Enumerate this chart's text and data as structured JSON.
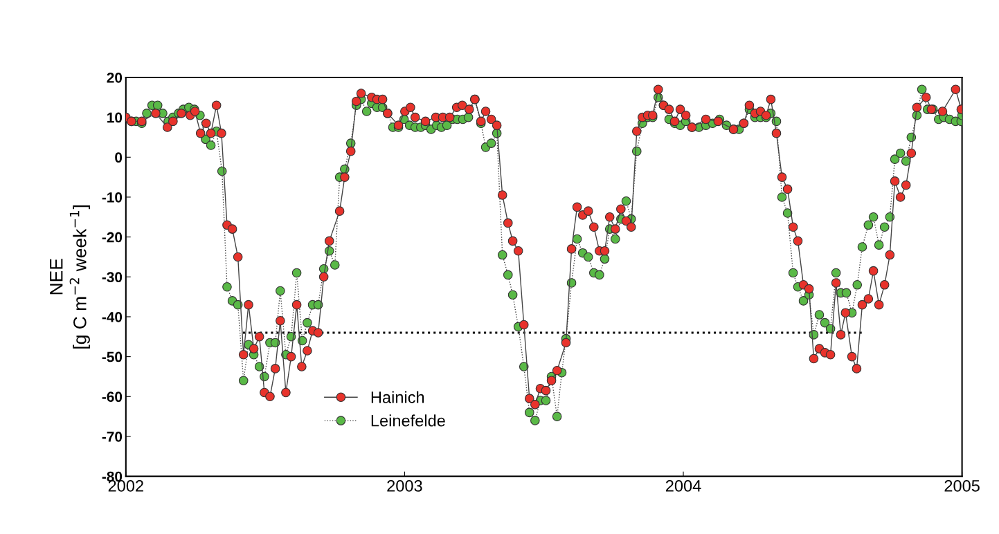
{
  "chart_data": {
    "type": "line",
    "xlabel": null,
    "ylabel": "NEE\n[g C m$^{−2}$ week$^{−1}$]",
    "xlim": [
      2002,
      2005
    ],
    "xticks": [
      2002,
      2003,
      2004,
      2005
    ],
    "ylim": [
      -80,
      20
    ],
    "yticks": [
      -80,
      -70,
      -60,
      -50,
      -40,
      -30,
      -20,
      -10,
      0,
      10,
      20
    ],
    "grid": false,
    "legend": "bottom left",
    "marker": "circle",
    "series": [
      {
        "name": "Hainich",
        "color": "#e8332c",
        "line_style": "solid",
        "x": [
          2002.0,
          2002.02,
          2002.057,
          2002.107,
          2002.149,
          2002.169,
          2002.199,
          2002.231,
          2002.248,
          2002.268,
          2002.288,
          2002.305,
          2002.325,
          2002.343,
          2002.363,
          2002.382,
          2002.402,
          2002.422,
          2002.44,
          2002.459,
          2002.479,
          2002.497,
          2002.517,
          2002.536,
          2002.554,
          2002.574,
          2002.593,
          2002.613,
          2002.631,
          2002.651,
          2002.67,
          2002.69,
          2002.71,
          2002.73,
          2002.767,
          2002.785,
          2002.807,
          2002.827,
          2002.844,
          2002.882,
          2002.901,
          2002.921,
          2002.939,
          2002.978,
          2003.001,
          2003.021,
          2003.038,
          2003.075,
          2003.112,
          2003.137,
          2003.162,
          2003.187,
          2003.207,
          2003.232,
          2003.252,
          2003.274,
          2003.291,
          2003.311,
          2003.331,
          2003.351,
          2003.371,
          2003.388,
          2003.408,
          2003.428,
          2003.448,
          2003.468,
          2003.487,
          2003.507,
          2003.527,
          2003.547,
          2003.579,
          2003.599,
          2003.619,
          2003.639,
          2003.659,
          2003.679,
          2003.699,
          2003.718,
          2003.736,
          2003.756,
          2003.776,
          2003.795,
          2003.813,
          2003.833,
          2003.853,
          2003.872,
          2003.89,
          2003.91,
          2003.929,
          2003.949,
          2003.969,
          2003.989,
          2004.009,
          2004.031,
          2004.081,
          2004.125,
          2004.18,
          2004.217,
          2004.237,
          2004.257,
          2004.277,
          2004.297,
          2004.314,
          2004.334,
          2004.354,
          2004.374,
          2004.394,
          2004.411,
          2004.431,
          2004.451,
          2004.468,
          2004.488,
          2004.508,
          2004.528,
          2004.548,
          2004.565,
          2004.582,
          2004.605,
          2004.622,
          2004.642,
          2004.664,
          2004.682,
          2004.702,
          2004.722,
          2004.741,
          2004.759,
          2004.779,
          2004.799,
          2004.818,
          2004.838,
          2004.871,
          2004.89,
          2004.93,
          2004.977,
          2004.997
        ],
        "values": [
          10,
          9,
          9,
          11,
          7.5,
          9,
          11,
          10.5,
          11.5,
          6,
          8.5,
          6,
          13,
          6,
          -17,
          -18,
          -25,
          -49.5,
          -37,
          -48,
          -45,
          -59,
          -60,
          -53,
          -41,
          -59,
          -50,
          -37,
          -52.5,
          -48.5,
          -43.5,
          -44,
          -30,
          -21,
          -13.5,
          -5,
          1.5,
          14,
          16,
          15,
          14.5,
          14.5,
          11,
          8,
          11.5,
          12.5,
          10,
          9,
          10,
          10,
          10,
          12.5,
          13,
          12,
          14.5,
          9,
          11.5,
          9.5,
          8,
          -9.5,
          -16.5,
          -21,
          -23.5,
          -42,
          -60.5,
          -62,
          -58,
          -58.5,
          -56,
          -53.5,
          -46.5,
          -23,
          -12.5,
          -14.5,
          -13.5,
          -17.5,
          -23.5,
          -23.5,
          -15,
          -18,
          -13,
          -16,
          -17.5,
          6.5,
          10,
          10.5,
          10.5,
          17,
          13,
          12,
          9,
          12,
          10.5,
          7.5,
          9.5,
          9,
          7,
          8.5,
          13,
          11,
          11.5,
          10.5,
          14.5,
          6,
          -5,
          -8,
          -17.5,
          -21,
          -32,
          -33,
          -50.5,
          -48,
          -49,
          -49.5,
          -31.5,
          -44.5,
          -39,
          -50,
          -53,
          -37,
          -35.5,
          -28.5,
          -37,
          -32,
          -24.5,
          -6,
          -10,
          -7,
          1,
          12.5,
          15,
          12,
          11.5,
          17,
          12
        ]
      },
      {
        "name": "Leinefelde",
        "color": "#5ab947",
        "line_style": "dotted",
        "x": [
          2002.02,
          2002.037,
          2002.057,
          2002.075,
          2002.094,
          2002.114,
          2002.132,
          2002.152,
          2002.169,
          2002.189,
          2002.206,
          2002.226,
          2002.246,
          2002.266,
          2002.286,
          2002.305,
          2002.325,
          2002.345,
          2002.363,
          2002.382,
          2002.402,
          2002.422,
          2002.44,
          2002.459,
          2002.479,
          2002.497,
          2002.517,
          2002.536,
          2002.554,
          2002.574,
          2002.593,
          2002.613,
          2002.633,
          2002.651,
          2002.67,
          2002.69,
          2002.71,
          2002.73,
          2002.75,
          2002.767,
          2002.785,
          2002.807,
          2002.827,
          2002.844,
          2002.864,
          2002.882,
          2002.901,
          2002.921,
          2002.939,
          2002.958,
          2002.978,
          2002.998,
          2003.018,
          2003.038,
          2003.058,
          2003.075,
          2003.095,
          2003.115,
          2003.132,
          2003.152,
          2003.172,
          2003.189,
          2003.209,
          2003.229,
          2003.252,
          2003.274,
          2003.291,
          2003.311,
          2003.331,
          2003.351,
          2003.371,
          2003.388,
          2003.408,
          2003.428,
          2003.448,
          2003.468,
          2003.487,
          2003.507,
          2003.527,
          2003.547,
          2003.564,
          2003.579,
          2003.599,
          2003.619,
          2003.639,
          2003.659,
          2003.679,
          2003.699,
          2003.718,
          2003.736,
          2003.756,
          2003.776,
          2003.795,
          2003.813,
          2003.833,
          2003.853,
          2003.872,
          2003.89,
          2003.91,
          2003.929,
          2003.949,
          2003.969,
          2003.989,
          2004.009,
          2004.031,
          2004.056,
          2004.081,
          2004.105,
          2004.13,
          2004.155,
          2004.18,
          2004.2,
          2004.217,
          2004.237,
          2004.257,
          2004.277,
          2004.297,
          2004.314,
          2004.334,
          2004.354,
          2004.374,
          2004.394,
          2004.411,
          2004.431,
          2004.451,
          2004.468,
          2004.488,
          2004.508,
          2004.528,
          2004.548,
          2004.565,
          2004.585,
          2004.605,
          2004.624,
          2004.642,
          2004.664,
          2004.682,
          2004.702,
          2004.722,
          2004.741,
          2004.759,
          2004.779,
          2004.799,
          2004.818,
          2004.838,
          2004.856,
          2004.876,
          2004.896,
          2004.916,
          2004.935,
          2004.955,
          2004.977,
          2004.997,
          2005.0
        ],
        "values": [
          9,
          9,
          8.5,
          11,
          13,
          13,
          11,
          9,
          10,
          11,
          12,
          12.5,
          12,
          10.5,
          4.5,
          3,
          6.5,
          -3.5,
          -32.5,
          -36,
          -37,
          -56,
          -47,
          -49.5,
          -52.5,
          -55,
          -46.5,
          -46.5,
          -33.5,
          -49.5,
          -45,
          -29,
          -46,
          -41.5,
          -37,
          -37,
          -28,
          -23.5,
          -27,
          -5,
          -3,
          3.5,
          13,
          14.5,
          11.5,
          13.5,
          12.5,
          12.5,
          11,
          7.5,
          7.5,
          9.5,
          8,
          7.5,
          7.5,
          8,
          7,
          8,
          7.5,
          8,
          9.5,
          9.5,
          9.5,
          10,
          14.5,
          8.5,
          2.5,
          3.5,
          6,
          -24.5,
          -29.5,
          -34.5,
          -42.5,
          -52.5,
          -64,
          -66,
          -61,
          -61,
          -55,
          -65,
          -54,
          -45.5,
          -31.5,
          -20.5,
          -24,
          -25,
          -29,
          -29.5,
          -25.5,
          -18,
          -20.5,
          -15.5,
          -11,
          -15.5,
          1.5,
          8.5,
          10,
          10,
          15,
          13,
          9.5,
          8.5,
          8,
          9,
          7.5,
          7.5,
          8,
          8.5,
          9.5,
          8,
          7,
          7,
          8.5,
          12,
          10,
          10,
          10,
          11,
          9,
          -10,
          -14,
          -29,
          -32.5,
          -36,
          -34.5,
          -44.5,
          -39.5,
          -41.5,
          -43,
          -29,
          -34,
          -34,
          -39,
          -32,
          -22.5,
          -17,
          -15,
          -22,
          -17.5,
          -15,
          -0.5,
          1,
          -1,
          5,
          10.5,
          17,
          12,
          12,
          9.5,
          10,
          9.5,
          9,
          9,
          10.5
        ]
      },
      {
        "type": "line",
        "color": "#000000",
        "line_style": "dotted",
        "marker": "none",
        "x": [
          2002.42,
          2004.65
        ],
        "values": [
          -44,
          -44
        ]
      }
    ]
  }
}
